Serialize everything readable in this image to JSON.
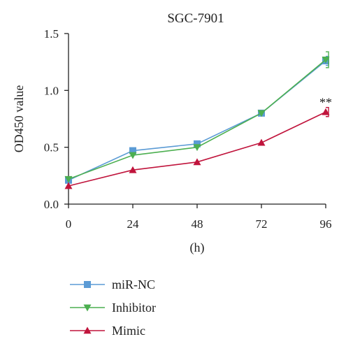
{
  "chart_data": {
    "type": "line",
    "title": "SGC-7901",
    "xlabel": "(h)",
    "ylabel": "OD450 value",
    "x": [
      0,
      24,
      48,
      72,
      96
    ],
    "xticks": [
      "0",
      "24",
      "48",
      "72",
      "96"
    ],
    "yticks": [
      "0.0",
      "0.5",
      "1.0",
      "1.5"
    ],
    "xlim": [
      0,
      96
    ],
    "ylim": [
      0,
      1.5
    ],
    "grid": false,
    "legend_position": "bottom-left",
    "series": [
      {
        "name": "miR-NC",
        "color": "#5b9bd5",
        "marker": "square",
        "values": [
          0.21,
          0.47,
          0.53,
          0.8,
          1.26
        ],
        "error_last": 0.04
      },
      {
        "name": "Inhibitor",
        "color": "#4caf50",
        "marker": "triangle-down",
        "values": [
          0.22,
          0.43,
          0.5,
          0.8,
          1.27
        ],
        "error_last": 0.07
      },
      {
        "name": "Mimic",
        "color": "#c0143c",
        "marker": "triangle-up",
        "values": [
          0.16,
          0.3,
          0.37,
          0.54,
          0.81
        ],
        "error_last": 0.04
      }
    ],
    "annotations": [
      {
        "text": "**",
        "x": 96,
        "y": 0.93
      }
    ]
  }
}
